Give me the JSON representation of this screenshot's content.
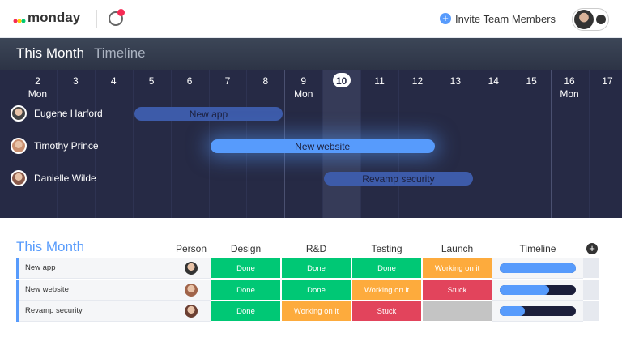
{
  "header": {
    "brand": "monday",
    "invite": "Invite Team Members"
  },
  "timeline": {
    "title": "This Month",
    "subtitle": "Timeline",
    "days": [
      {
        "day": "2",
        "weekday": "Mon"
      },
      {
        "day": "3"
      },
      {
        "day": "4"
      },
      {
        "day": "5"
      },
      {
        "day": "6"
      },
      {
        "day": "7"
      },
      {
        "day": "8"
      },
      {
        "day": "9",
        "weekday": "Mon"
      },
      {
        "day": "10",
        "today": true
      },
      {
        "day": "11"
      },
      {
        "day": "12"
      },
      {
        "day": "13"
      },
      {
        "day": "14"
      },
      {
        "day": "15"
      },
      {
        "day": "16",
        "weekday": "Mon"
      },
      {
        "day": "17"
      }
    ],
    "people": [
      {
        "name": "Eugene Harford",
        "task": "New app"
      },
      {
        "name": "Timothy Prince",
        "task": "New website"
      },
      {
        "name": "Danielle Wilde",
        "task": "Revamp security"
      }
    ]
  },
  "board": {
    "title": "This Month",
    "columns": [
      "Person",
      "Design",
      "R&D",
      "Testing",
      "Launch",
      "Timeline"
    ],
    "rows": [
      {
        "item": "New app",
        "statuses": [
          "Done",
          "Done",
          "Done",
          "Working on it"
        ]
      },
      {
        "item": "New website",
        "statuses": [
          "Done",
          "Done",
          "Working on it",
          "Stuck"
        ]
      },
      {
        "item": "Revamp security",
        "statuses": [
          "Done",
          "Working on it",
          "Stuck",
          null
        ]
      }
    ]
  }
}
